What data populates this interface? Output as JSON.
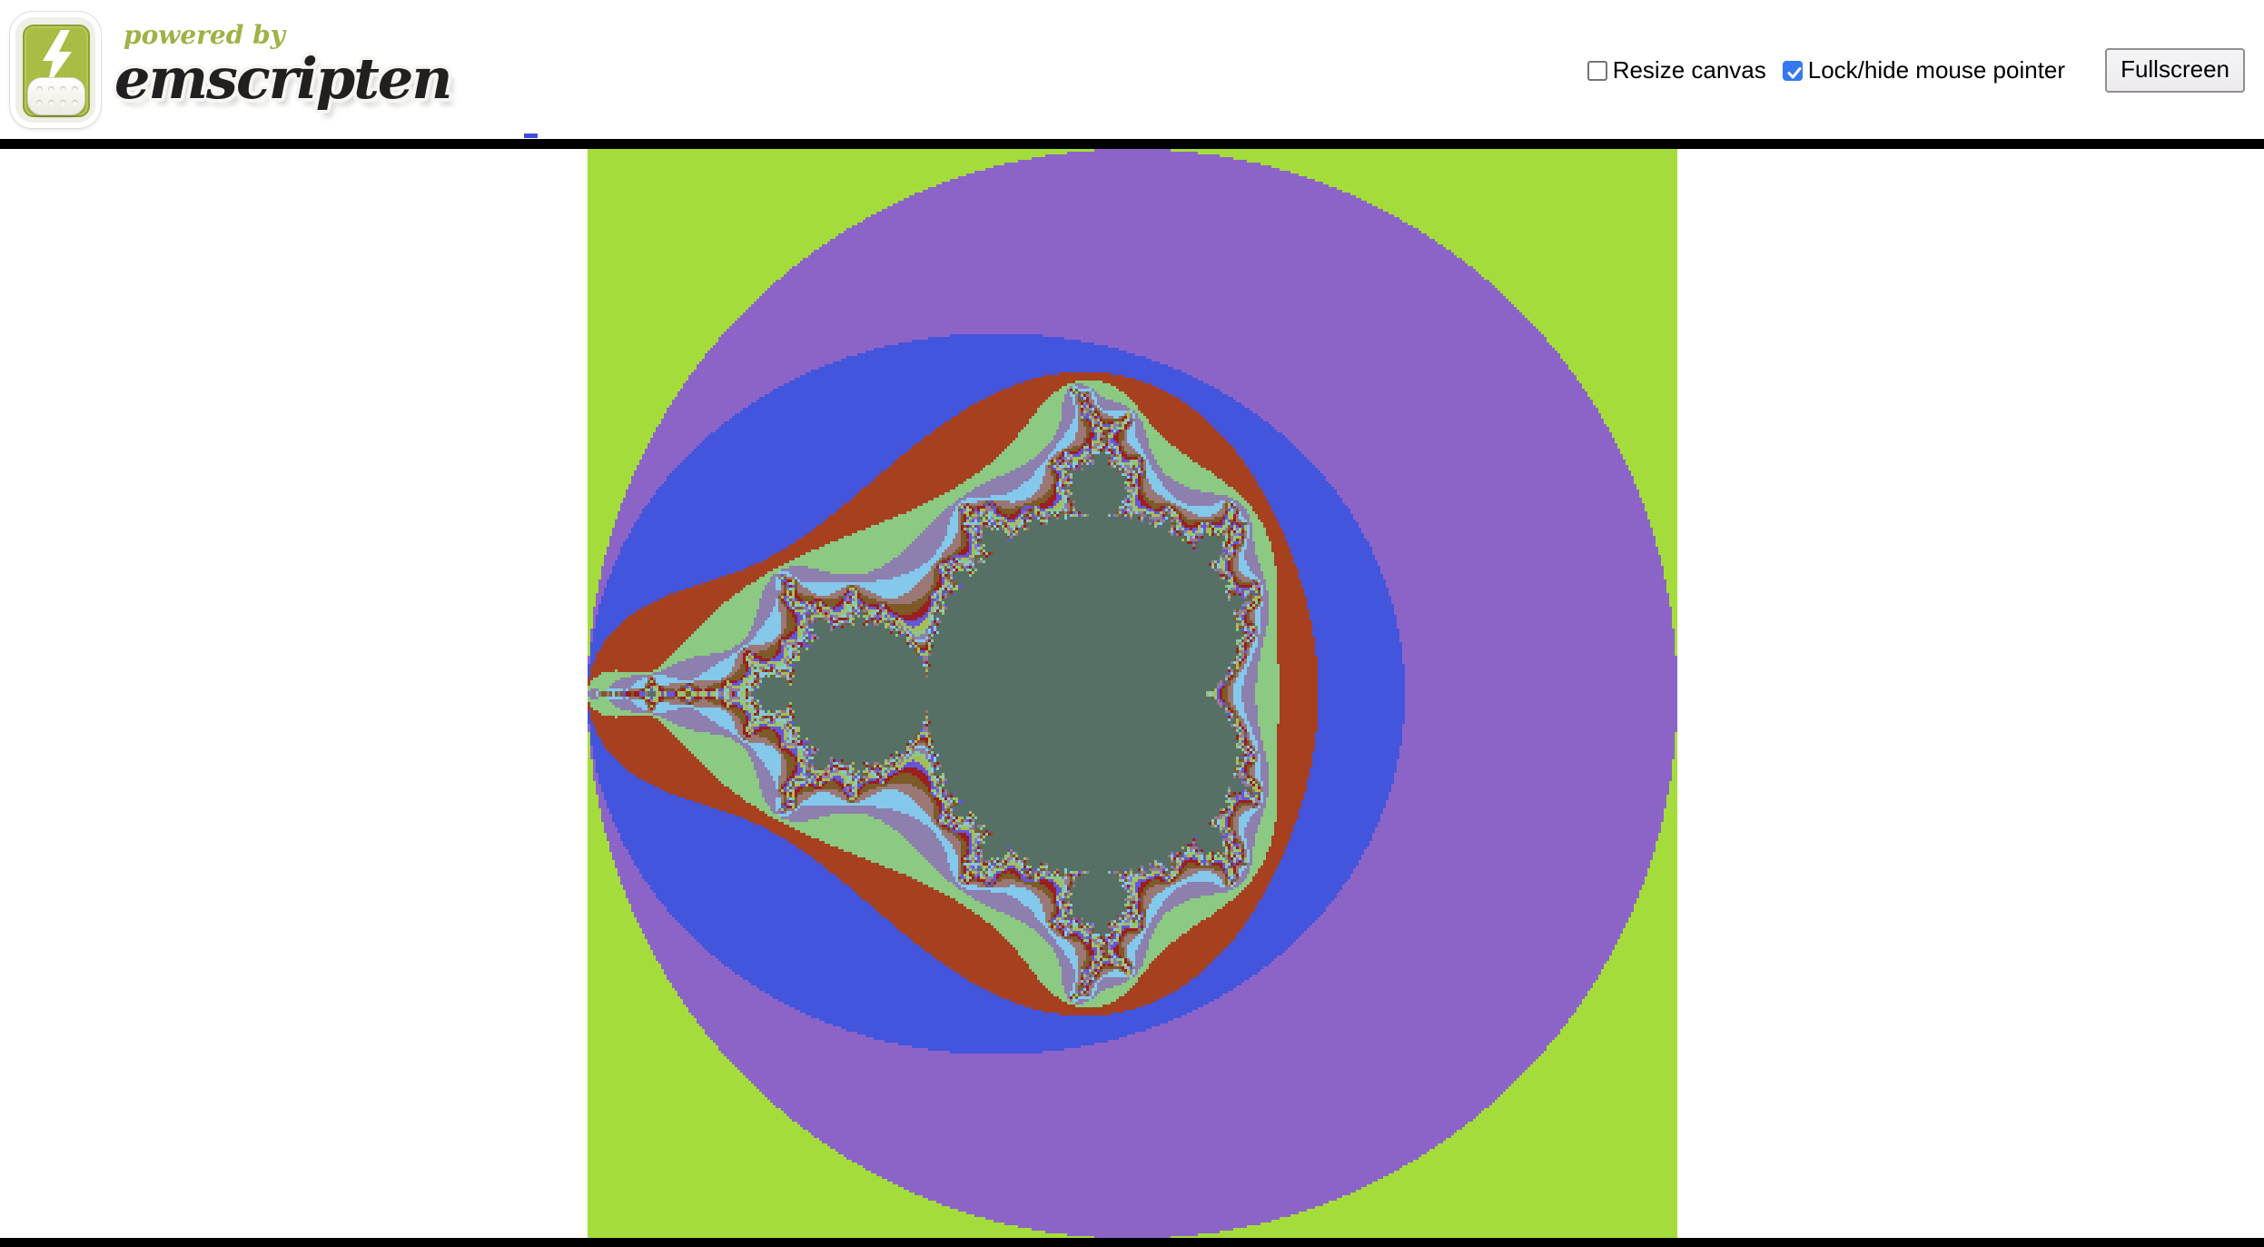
{
  "header": {
    "powered_by": "powered by",
    "brand": "emscripten",
    "logo_icon": "lightning-bolt"
  },
  "controls": {
    "resize": {
      "label": "Resize canvas",
      "checked": false
    },
    "pointer_lock": {
      "label": "Lock/hide mouse pointer",
      "checked": true
    },
    "fullscreen_label": "Fullscreen"
  },
  "colors": {
    "page_background": "#ffffff",
    "rule": "#000000",
    "caret_blue": "#3b4ede",
    "checkbox_checked_blue": "#3578f0",
    "logo_green": "#a9bc44",
    "powered_by_green": "#9fb243",
    "brand_ink": "#221f20",
    "button_border": "#8f8f8f"
  },
  "fractal": {
    "kind": "mandelbrot-escape-time",
    "render_size": 400,
    "display_size": 1200,
    "max_iter": 60,
    "view": {
      "re_min": -2.0,
      "re_max": 2.0,
      "im_min": -2.0,
      "im_max": 2.0
    },
    "interior_color": "#577066",
    "cycle_start": 4,
    "cycle_length": 8,
    "palette": [
      "#a4dd3b",
      "#8c64c8",
      "#4355dd",
      "#a7401f",
      "#8cc983",
      "#8d7fae",
      "#84c8ec",
      "#9b7876",
      "#7d5a28",
      "#9a1f1f",
      "#6456dc",
      "#a8bc58"
    ]
  }
}
